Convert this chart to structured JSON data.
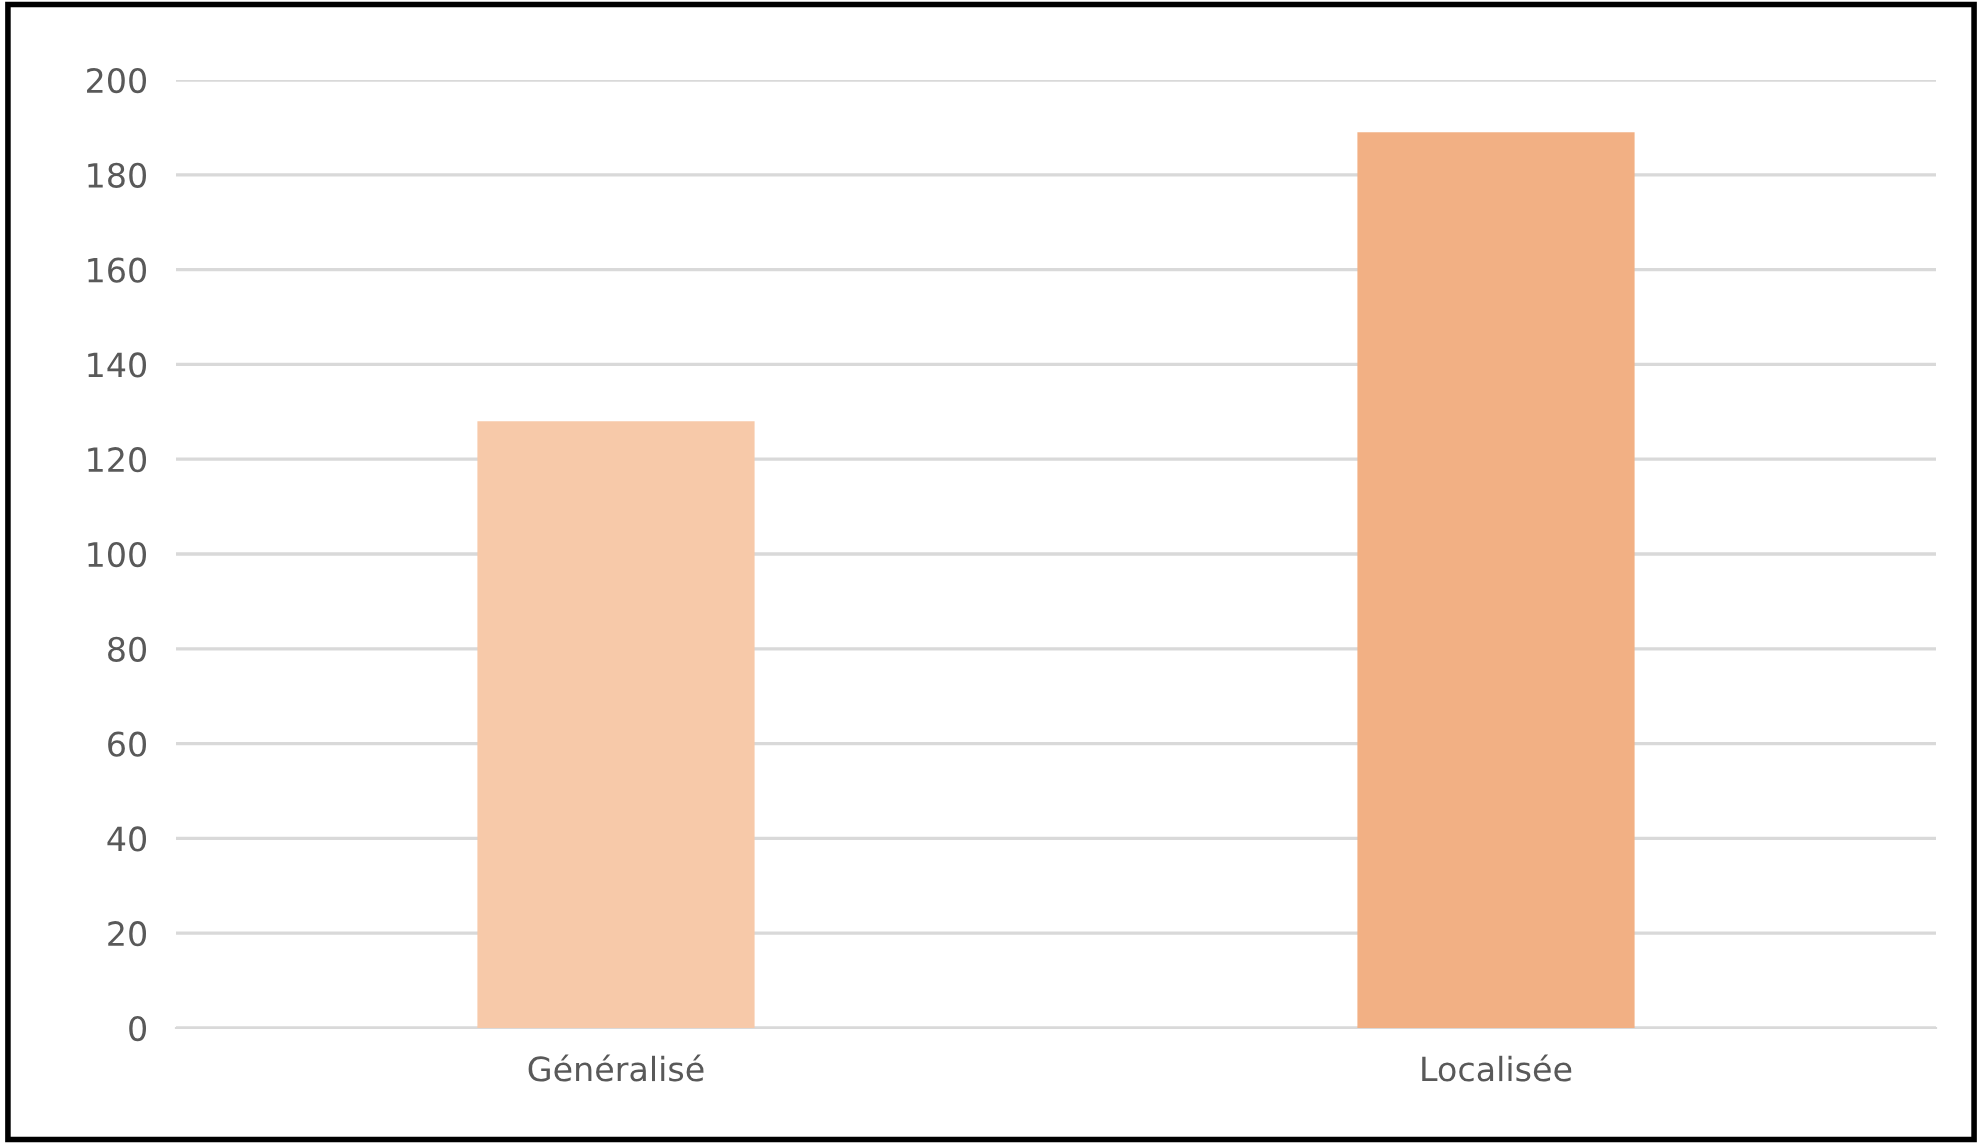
{
  "chart_data": {
    "type": "bar",
    "categories": [
      "Généralisé",
      "Localisée"
    ],
    "values": [
      128,
      189
    ],
    "colors": [
      "#f7c9a9",
      "#f2b084"
    ],
    "ylim": [
      0,
      200
    ],
    "yticks": [
      0,
      20,
      40,
      60,
      80,
      100,
      120,
      140,
      160,
      180,
      200
    ],
    "grid": "y",
    "legend": false
  }
}
